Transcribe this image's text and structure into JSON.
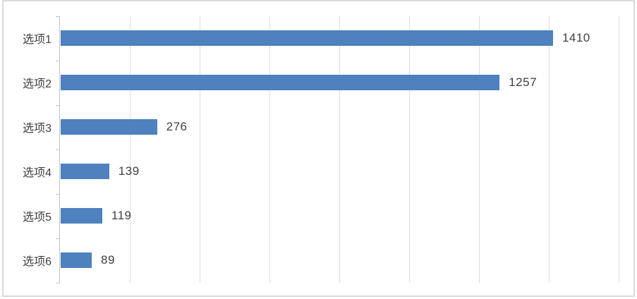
{
  "chart_data": {
    "type": "bar",
    "orientation": "horizontal",
    "title": "",
    "xlabel": "",
    "ylabel": "",
    "categories": [
      "选项1",
      "选项2",
      "选项3",
      "选项4",
      "选项5",
      "选项6"
    ],
    "values": [
      1410,
      1257,
      276,
      139,
      119,
      89
    ],
    "value_labels": [
      "1410",
      "1257",
      "276",
      "139",
      "119",
      "89"
    ],
    "xlim": [
      0,
      1600
    ],
    "gridline_interval": 200,
    "grid": "vertical-gridlines-only",
    "legend": "none",
    "axis_tick_labels_visible": false
  },
  "colors": {
    "bar": "#4e81bd",
    "gridline": "#dedede",
    "axis": "#c3c3c3",
    "text": "#404040",
    "frame_border": "#dbdbdb",
    "background": "#ffffff"
  }
}
